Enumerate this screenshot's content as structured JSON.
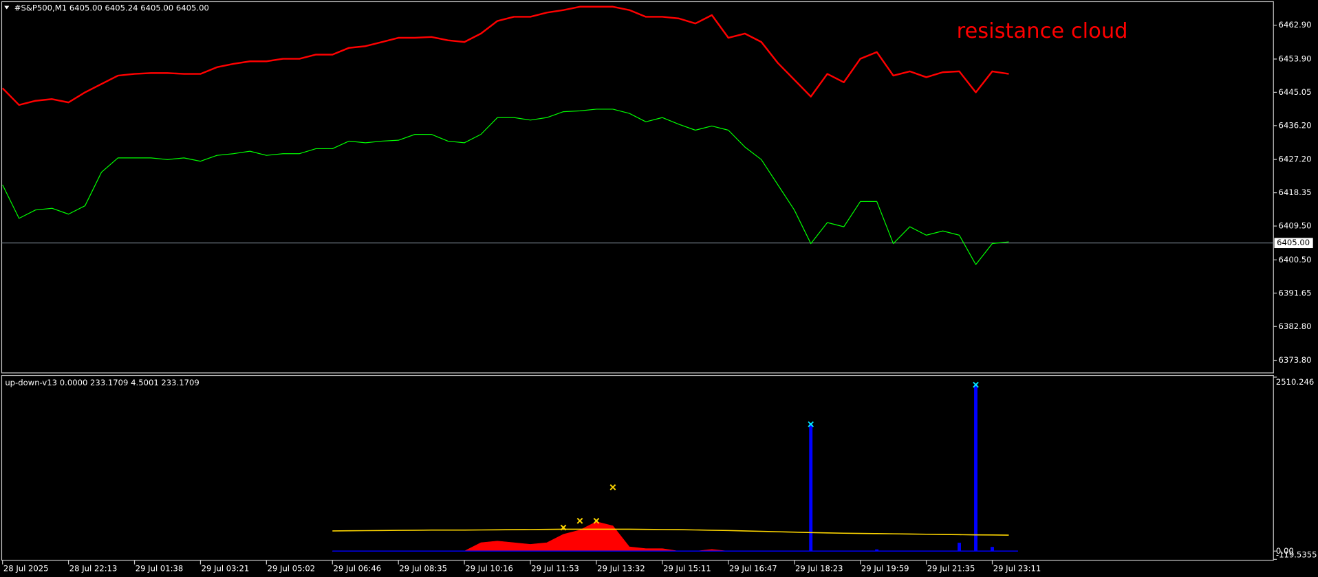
{
  "chart_data": [
    {
      "type": "line",
      "title": "#S&P500,M1  6405.00 6405.24 6405.00 6405.00",
      "annotations": [
        "resistance cloud"
      ],
      "annotation_color": "#ff0000",
      "categories": [
        "28 Jul 2025",
        null,
        null,
        null,
        "28 Jul 22:13",
        null,
        null,
        null,
        "29 Jul 01:38",
        null,
        null,
        null,
        "29 Jul 03:21",
        null,
        null,
        null,
        "29 Jul 05:02",
        null,
        null,
        null,
        "29 Jul 06:46",
        null,
        null,
        null,
        "29 Jul 08:35",
        null,
        null,
        null,
        "29 Jul 10:16",
        null,
        null,
        null,
        "29 Jul 11:53",
        null,
        null,
        null,
        "29 Jul 13:32",
        null,
        null,
        null,
        "29 Jul 15:11",
        null,
        null,
        null,
        "29 Jul 16:47",
        null,
        null,
        null,
        "29 Jul 18:23",
        null,
        null,
        null,
        "29 Jul 19:59",
        null,
        null,
        null,
        "29 Jul 21:35",
        null,
        null,
        null,
        "29 Jul 23:11",
        null
      ],
      "series": [
        {
          "color": "#ff0000",
          "width": 2,
          "values": [
            6446.15,
            6441.69,
            6442.8,
            6443.25,
            6442.36,
            6445.04,
            6447.27,
            6449.5,
            6449.95,
            6450.17,
            6450.17,
            6449.95,
            6449.95,
            6451.73,
            6452.63,
            6453.3,
            6453.3,
            6453.97,
            6453.97,
            6455.08,
            6455.08,
            6456.87,
            6457.32,
            6458.43,
            6459.55,
            6459.55,
            6459.77,
            6458.88,
            6458.43,
            6460.67,
            6464.02,
            6465.13,
            6465.13,
            6466.25,
            6466.92,
            6467.81,
            6467.81,
            6467.81,
            6466.92,
            6465.13,
            6465.13,
            6464.69,
            6463.35,
            6465.58,
            6459.55,
            6460.67,
            6458.43,
            6452.85,
            6448.39,
            6443.92,
            6449.95,
            6447.72,
            6453.97,
            6455.75,
            6449.5,
            6450.62,
            6449.06,
            6450.4,
            6450.62,
            6445.04,
            6450.62,
            6449.95
          ]
        },
        {
          "color": "#00ff00",
          "width": 1,
          "values": [
            6420.47,
            6411.54,
            6413.77,
            6414.22,
            6412.66,
            6414.89,
            6423.82,
            6427.62,
            6427.62,
            6427.62,
            6427.17,
            6427.62,
            6426.73,
            6428.29,
            6428.74,
            6429.4,
            6428.29,
            6428.74,
            6428.74,
            6430.07,
            6430.07,
            6432.08,
            6431.64,
            6432.08,
            6432.31,
            6433.87,
            6433.87,
            6432.08,
            6431.64,
            6433.87,
            6438.34,
            6438.34,
            6437.67,
            6438.34,
            6439.9,
            6440.12,
            6440.57,
            6440.57,
            6439.45,
            6437.22,
            6438.34,
            6436.55,
            6434.99,
            6436.1,
            6434.99,
            6430.52,
            6427.17,
            6420.47,
            6413.77,
            6404.84,
            6410.42,
            6409.31,
            6416.01,
            6416.01,
            6404.84,
            6409.31,
            6407.07,
            6408.19,
            6407.07,
            6399.26,
            6404.84,
            6405.29
          ]
        }
      ],
      "hline": {
        "value": 6405,
        "label": "6405.00"
      },
      "ylim": [
        6370.45,
        6469.15
      ],
      "yticks": [
        {
          "value": 6462.9,
          "label": "6462.90"
        },
        {
          "value": 6453.9,
          "label": "6453.90"
        },
        6445.05,
        {
          "value": 6436.2,
          "label": "6436.20"
        },
        {
          "value": 6427.2,
          "label": "6427.20"
        },
        6418.35,
        {
          "value": 6409.5,
          "label": "6409.50"
        },
        {
          "value": 6400.5,
          "label": "6400.50"
        },
        6391.65,
        {
          "value": 6382.8,
          "label": "6382.80"
        },
        {
          "value": 6373.8,
          "label": "6373.80"
        }
      ]
    },
    {
      "type": "indicator",
      "title": "up-down-v13 0.0000 233.1709 4.5001 233.1709",
      "series": [
        {
          "color": "#ff0000",
          "style": "area",
          "values": [
            null,
            null,
            null,
            null,
            null,
            null,
            null,
            null,
            null,
            null,
            null,
            null,
            null,
            null,
            null,
            null,
            null,
            null,
            null,
            null,
            0,
            0,
            0,
            0,
            0,
            0,
            0,
            0,
            0,
            121,
            145,
            121,
            97,
            121,
            242,
            303,
            424,
            364,
            61,
            36,
            36,
            0,
            0,
            24,
            0,
            0,
            0,
            0,
            0,
            0,
            0,
            0,
            0,
            0,
            0,
            0,
            0,
            0,
            0,
            0,
            0,
            0
          ]
        },
        {
          "color": "#0000ff",
          "style": "bars",
          "values": [
            null,
            null,
            null,
            null,
            null,
            null,
            null,
            null,
            null,
            null,
            null,
            null,
            null,
            null,
            null,
            null,
            null,
            null,
            null,
            null,
            0,
            0,
            0,
            0,
            0,
            0,
            0,
            0,
            0,
            0,
            0,
            0,
            0,
            0,
            0,
            0,
            0,
            0,
            0,
            0,
            0,
            0,
            0,
            0,
            0,
            0,
            0,
            0,
            0,
            1830,
            0,
            0,
            0,
            24,
            0,
            0,
            0,
            0,
            120,
            2400,
            60,
            0
          ]
        },
        {
          "color": "#ffd700",
          "style": "line",
          "values": [
            null,
            null,
            null,
            null,
            null,
            null,
            null,
            null,
            null,
            null,
            null,
            null,
            null,
            null,
            null,
            null,
            null,
            null,
            null,
            null,
            291,
            293,
            295,
            297,
            299,
            301,
            303,
            303,
            303,
            305,
            307,
            309,
            311,
            313,
            315,
            315,
            315,
            315,
            315,
            313,
            311,
            309,
            305,
            301,
            297,
            291,
            285,
            279,
            273,
            267,
            262,
            258,
            255,
            252,
            249,
            246,
            243,
            240,
            237,
            234,
            232,
            230
          ]
        },
        {
          "color": "#ffd700",
          "style": "markers",
          "values": [
            null,
            null,
            null,
            null,
            null,
            null,
            null,
            null,
            null,
            null,
            null,
            null,
            null,
            null,
            null,
            null,
            null,
            null,
            null,
            null,
            null,
            null,
            null,
            null,
            null,
            null,
            null,
            null,
            null,
            null,
            null,
            null,
            null,
            null,
            339,
            436,
            436,
            921,
            null,
            null,
            null,
            null,
            null,
            null,
            null,
            null,
            null,
            null,
            null,
            null,
            null,
            null,
            null,
            null,
            null,
            null,
            null,
            null,
            null,
            null,
            null,
            null
          ]
        },
        {
          "color": "#00e5ff",
          "style": "markers",
          "values": [
            null,
            null,
            null,
            null,
            null,
            null,
            null,
            null,
            null,
            null,
            null,
            null,
            null,
            null,
            null,
            null,
            null,
            null,
            null,
            null,
            null,
            null,
            null,
            null,
            null,
            null,
            null,
            null,
            null,
            null,
            null,
            null,
            null,
            null,
            null,
            null,
            null,
            null,
            null,
            null,
            null,
            null,
            null,
            null,
            null,
            null,
            null,
            null,
            null,
            1830,
            null,
            null,
            null,
            null,
            null,
            null,
            null,
            null,
            null,
            2400,
            null,
            null
          ]
        }
      ],
      "ylim": [
        -119.5355,
        2510.246
      ],
      "yticks": [
        2510.246,
        {
          "value": 0,
          "label": "0.00"
        },
        -119.5355
      ]
    }
  ]
}
